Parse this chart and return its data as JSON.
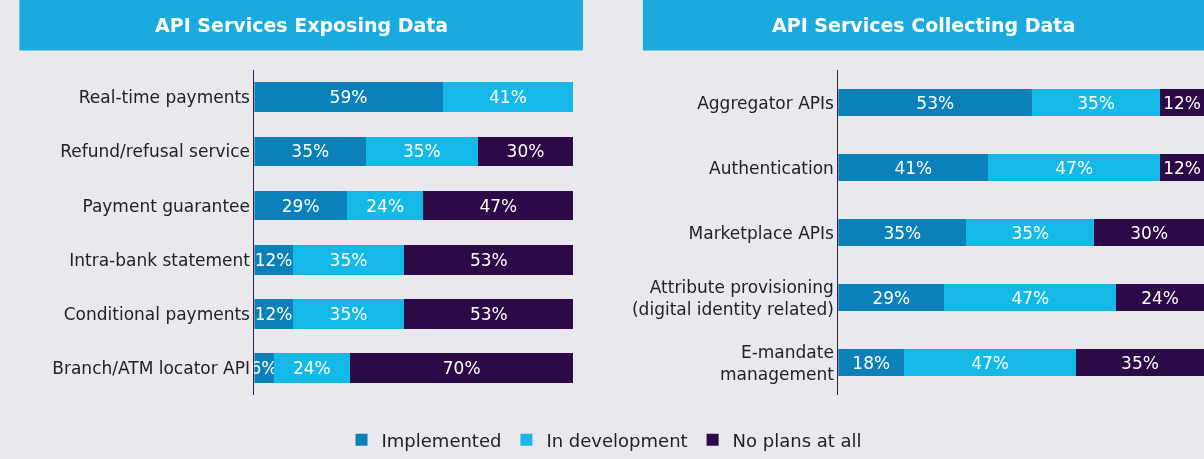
{
  "chart_data": [
    {
      "type": "bar",
      "orientation": "horizontal",
      "stacked": true,
      "title": "API Services Exposing Data",
      "categories": [
        "Real-time payments",
        "Refund/refusal service",
        "Payment guarantee",
        "Intra-bank statement",
        "Conditional payments",
        "Branch/ATM locator API"
      ],
      "series": [
        {
          "name": "Implemented",
          "color": "#0b80b9",
          "values": [
            59,
            35,
            29,
            12,
            12,
            6
          ],
          "value_labels": [
            "59%",
            "35%",
            "29%",
            "12%",
            "12%",
            "6%"
          ]
        },
        {
          "name": "In development",
          "color": "#15b9e7",
          "values": [
            41,
            35,
            24,
            35,
            35,
            24
          ],
          "value_labels": [
            "41%",
            "35%",
            "24%",
            "35%",
            "35%",
            "24%"
          ]
        },
        {
          "name": "No plans at all",
          "color": "#2b0a47",
          "values": [
            0,
            30,
            47,
            53,
            53,
            70
          ],
          "value_labels": [
            null,
            "30%",
            "47%",
            "53%",
            "53%",
            "70%"
          ]
        }
      ],
      "xlim": [
        0,
        100
      ],
      "tick_labels": "y",
      "grid": false,
      "legend": "bottom"
    },
    {
      "type": "bar",
      "orientation": "horizontal",
      "stacked": true,
      "title": "API Services Collecting Data",
      "categories": [
        "Aggregator APIs",
        "Authentication",
        "Marketplace APIs",
        "Attribute provisioning\n(digital identity related)",
        "E-mandate\nmanagement"
      ],
      "series": [
        {
          "name": "Implemented",
          "color": "#0b80b9",
          "values": [
            53,
            41,
            35,
            29,
            18
          ],
          "value_labels": [
            "53%",
            "41%",
            "35%",
            "29%",
            "18%"
          ]
        },
        {
          "name": "In development",
          "color": "#15b9e7",
          "values": [
            35,
            47,
            35,
            47,
            47
          ],
          "value_labels": [
            "35%",
            "47%",
            "35%",
            "47%",
            "47%"
          ]
        },
        {
          "name": "No plans at all",
          "color": "#2b0a47",
          "values": [
            12,
            12,
            30,
            24,
            35
          ],
          "value_labels": [
            "12%",
            "12%",
            "30%",
            "24%",
            "35%"
          ]
        }
      ],
      "xlim": [
        0,
        100
      ],
      "tick_labels": "y",
      "grid": false,
      "legend": "bottom"
    }
  ]
}
